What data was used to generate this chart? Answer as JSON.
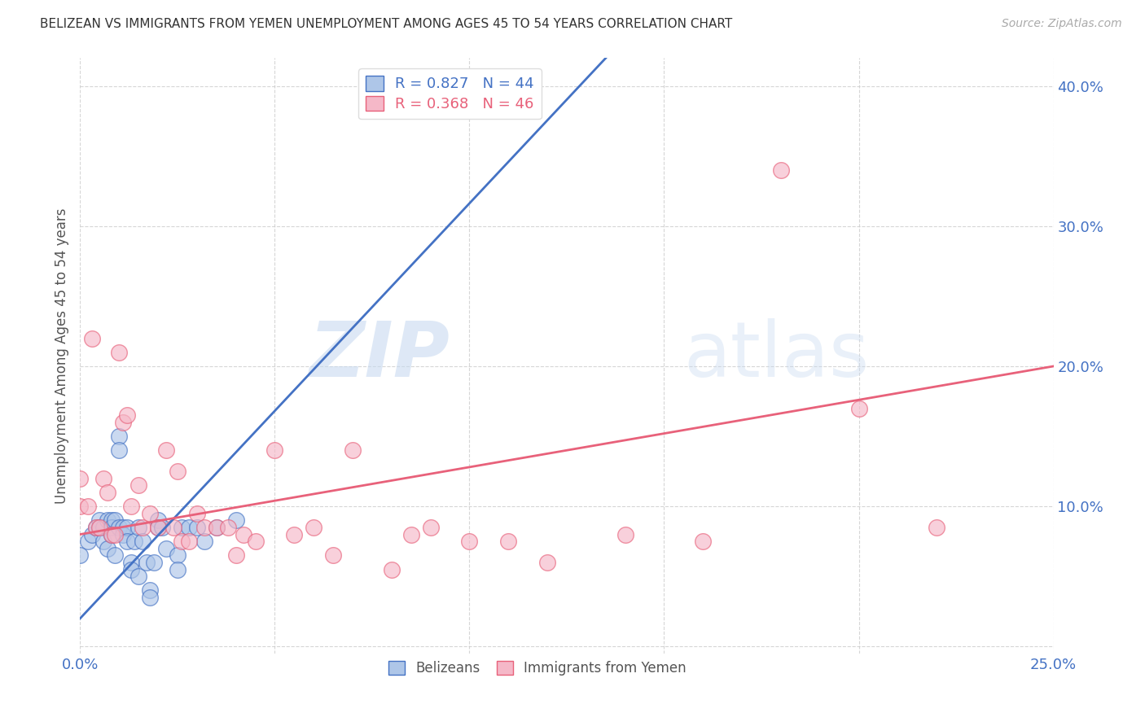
{
  "title": "BELIZEAN VS IMMIGRANTS FROM YEMEN UNEMPLOYMENT AMONG AGES 45 TO 54 YEARS CORRELATION CHART",
  "source": "Source: ZipAtlas.com",
  "ylabel": "Unemployment Among Ages 45 to 54 years",
  "xlim": [
    0.0,
    0.25
  ],
  "ylim": [
    -0.005,
    0.42
  ],
  "xticks": [
    0.0,
    0.05,
    0.1,
    0.15,
    0.2,
    0.25
  ],
  "yticks": [
    0.0,
    0.1,
    0.2,
    0.3,
    0.4
  ],
  "xticklabels": [
    "0.0%",
    "",
    "",
    "",
    "",
    "25.0%"
  ],
  "yticklabels": [
    "",
    "10.0%",
    "20.0%",
    "30.0%",
    "40.0%"
  ],
  "legend_labels": [
    "Belizeans",
    "Immigrants from Yemen"
  ],
  "R_belizean": 0.827,
  "N_belizean": 44,
  "R_yemen": 0.368,
  "N_yemen": 46,
  "belizean_color": "#aec6e8",
  "yemen_color": "#f5b8c8",
  "belizean_line_color": "#4472c4",
  "yemen_line_color": "#e8617a",
  "watermark_zip": "ZIP",
  "watermark_atlas": "atlas",
  "blue_line_x0": 0.0,
  "blue_line_y0": 0.02,
  "blue_line_x1": 0.135,
  "blue_line_y1": 0.42,
  "pink_line_x0": 0.0,
  "pink_line_y0": 0.08,
  "pink_line_x1": 0.25,
  "pink_line_y1": 0.2,
  "belizean_x": [
    0.0,
    0.002,
    0.003,
    0.004,
    0.005,
    0.005,
    0.006,
    0.006,
    0.007,
    0.007,
    0.008,
    0.008,
    0.008,
    0.009,
    0.009,
    0.01,
    0.01,
    0.01,
    0.011,
    0.011,
    0.012,
    0.012,
    0.013,
    0.013,
    0.014,
    0.015,
    0.015,
    0.016,
    0.017,
    0.018,
    0.018,
    0.019,
    0.02,
    0.02,
    0.021,
    0.022,
    0.025,
    0.025,
    0.026,
    0.028,
    0.03,
    0.032,
    0.035,
    0.04
  ],
  "belizean_y": [
    0.065,
    0.075,
    0.08,
    0.085,
    0.09,
    0.085,
    0.085,
    0.075,
    0.09,
    0.07,
    0.09,
    0.085,
    0.08,
    0.09,
    0.065,
    0.15,
    0.14,
    0.085,
    0.085,
    0.08,
    0.085,
    0.075,
    0.06,
    0.055,
    0.075,
    0.085,
    0.05,
    0.075,
    0.06,
    0.04,
    0.035,
    0.06,
    0.09,
    0.085,
    0.085,
    0.07,
    0.065,
    0.055,
    0.085,
    0.085,
    0.085,
    0.075,
    0.085,
    0.09
  ],
  "yemen_x": [
    0.0,
    0.0,
    0.002,
    0.003,
    0.004,
    0.005,
    0.006,
    0.007,
    0.008,
    0.009,
    0.01,
    0.011,
    0.012,
    0.013,
    0.015,
    0.016,
    0.018,
    0.02,
    0.022,
    0.024,
    0.025,
    0.026,
    0.028,
    0.03,
    0.032,
    0.035,
    0.038,
    0.04,
    0.042,
    0.045,
    0.05,
    0.055,
    0.06,
    0.065,
    0.07,
    0.08,
    0.085,
    0.09,
    0.1,
    0.11,
    0.12,
    0.14,
    0.16,
    0.18,
    0.2,
    0.22
  ],
  "yemen_y": [
    0.12,
    0.1,
    0.1,
    0.22,
    0.085,
    0.085,
    0.12,
    0.11,
    0.08,
    0.08,
    0.21,
    0.16,
    0.165,
    0.1,
    0.115,
    0.085,
    0.095,
    0.085,
    0.14,
    0.085,
    0.125,
    0.075,
    0.075,
    0.095,
    0.085,
    0.085,
    0.085,
    0.065,
    0.08,
    0.075,
    0.14,
    0.08,
    0.085,
    0.065,
    0.14,
    0.055,
    0.08,
    0.085,
    0.075,
    0.075,
    0.06,
    0.08,
    0.075,
    0.34,
    0.17,
    0.085
  ]
}
